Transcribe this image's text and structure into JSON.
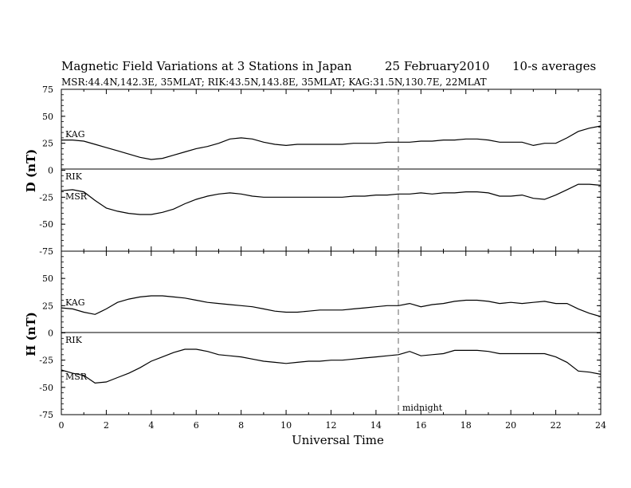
{
  "chart_data": [
    {
      "type": "line",
      "title_parts": {
        "main": "Magnetic Field Variations at 3 Stations in Japan",
        "date": "25 February2010",
        "avg": "10-s averages"
      },
      "subtitle": "MSR:44.4N,142.3E, 35MLAT;  RIK:43.5N,143.8E, 35MLAT;  KAG:31.5N,130.7E, 22MLAT",
      "ylabel": "D (nT)",
      "xlabel": "Universal Time",
      "ylim": [
        -75,
        75
      ],
      "xlim": [
        0,
        24
      ],
      "yticks": [
        "75",
        "50",
        "25",
        "0",
        "-25",
        "-50",
        "-75"
      ],
      "xticks": [
        "0",
        "2",
        "4",
        "6",
        "8",
        "10",
        "12",
        "14",
        "16",
        "18",
        "20",
        "22",
        "24"
      ],
      "series": [
        {
          "name": "KAG",
          "x": [
            0,
            0.5,
            1,
            1.5,
            2,
            2.5,
            3,
            3.5,
            4,
            4.5,
            5,
            5.5,
            6,
            6.5,
            7,
            7.5,
            8,
            8.5,
            9,
            9.5,
            10,
            10.5,
            11,
            11.5,
            12,
            12.5,
            13,
            13.5,
            14,
            14.5,
            15,
            15.5,
            16,
            16.5,
            17,
            17.5,
            18,
            18.5,
            19,
            19.5,
            20,
            20.5,
            21,
            21.5,
            22,
            22.5,
            23,
            23.5,
            24
          ],
          "values": [
            28,
            28,
            27,
            24,
            21,
            18,
            15,
            12,
            10,
            11,
            14,
            17,
            20,
            22,
            25,
            29,
            30,
            29,
            26,
            24,
            23,
            24,
            24,
            24,
            24,
            24,
            25,
            25,
            25,
            26,
            26,
            26,
            27,
            27,
            28,
            28,
            29,
            29,
            28,
            26,
            26,
            26,
            23,
            25,
            25,
            30,
            36,
            39,
            41
          ]
        },
        {
          "name": "RIK",
          "x": [
            0,
            24
          ],
          "values": [
            0,
            0
          ]
        },
        {
          "name": "MSR",
          "x": [
            0,
            0.5,
            1,
            1.5,
            2,
            2.5,
            3,
            3.5,
            4,
            4.5,
            5,
            5.5,
            6,
            6.5,
            7,
            7.5,
            8,
            8.5,
            9,
            9.5,
            10,
            10.5,
            11,
            11.5,
            12,
            12.5,
            13,
            13.5,
            14,
            14.5,
            15,
            15.5,
            16,
            16.5,
            17,
            17.5,
            18,
            18.5,
            19,
            19.5,
            20,
            20.5,
            21,
            21.5,
            22,
            22.5,
            23,
            23.5,
            24
          ],
          "values": [
            -19,
            -18,
            -20,
            -28,
            -35,
            -38,
            -40,
            -41,
            -41,
            -39,
            -36,
            -31,
            -27,
            -24,
            -22,
            -21,
            -22,
            -24,
            -25,
            -25,
            -25,
            -25,
            -25,
            -25,
            -25,
            -25,
            -24,
            -24,
            -23,
            -23,
            -22,
            -22,
            -21,
            -22,
            -21,
            -21,
            -20,
            -20,
            -21,
            -24,
            -24,
            -23,
            -26,
            -27,
            -23,
            -18,
            -13,
            -13,
            -14
          ]
        }
      ],
      "grid": false
    },
    {
      "type": "line",
      "ylabel": "H (nT)",
      "xlabel": "Universal Time",
      "ylim": [
        -75,
        75
      ],
      "xlim": [
        0,
        24
      ],
      "yticks": [
        "50",
        "25",
        "0",
        "-25",
        "-50",
        "-75"
      ],
      "xticks": [
        "0",
        "2",
        "4",
        "6",
        "8",
        "10",
        "12",
        "14",
        "16",
        "18",
        "20",
        "22",
        "24"
      ],
      "annotation": "midnight",
      "midnight_ut": 15,
      "series": [
        {
          "name": "KAG",
          "x": [
            0,
            0.5,
            1,
            1.5,
            2,
            2.5,
            3,
            3.5,
            4,
            4.5,
            5,
            5.5,
            6,
            6.5,
            7,
            7.5,
            8,
            8.5,
            9,
            9.5,
            10,
            10.5,
            11,
            11.5,
            12,
            12.5,
            13,
            13.5,
            14,
            14.5,
            15,
            15.5,
            16,
            16.5,
            17,
            17.5,
            18,
            18.5,
            19,
            19.5,
            20,
            20.5,
            21,
            21.5,
            22,
            22.5,
            23,
            23.5,
            24
          ],
          "values": [
            23,
            22,
            19,
            17,
            22,
            28,
            31,
            33,
            34,
            34,
            33,
            32,
            30,
            28,
            27,
            26,
            25,
            24,
            22,
            20,
            19,
            19,
            20,
            21,
            21,
            21,
            22,
            23,
            24,
            25,
            25,
            27,
            24,
            26,
            27,
            29,
            30,
            30,
            29,
            27,
            28,
            27,
            28,
            29,
            27,
            27,
            22,
            18,
            15
          ]
        },
        {
          "name": "RIK",
          "x": [
            0,
            24
          ],
          "values": [
            0,
            0
          ]
        },
        {
          "name": "MSR",
          "x": [
            0,
            0.5,
            1,
            1.5,
            2,
            2.5,
            3,
            3.5,
            4,
            4.5,
            5,
            5.5,
            6,
            6.5,
            7,
            7.5,
            8,
            8.5,
            9,
            9.5,
            10,
            10.5,
            11,
            11.5,
            12,
            12.5,
            13,
            13.5,
            14,
            14.5,
            15,
            15.5,
            16,
            16.5,
            17,
            17.5,
            18,
            18.5,
            19,
            19.5,
            20,
            20.5,
            21,
            21.5,
            22,
            22.5,
            23,
            23.5,
            24
          ],
          "values": [
            -34,
            -37,
            -39,
            -46,
            -45,
            -41,
            -37,
            -32,
            -26,
            -22,
            -18,
            -15,
            -15,
            -17,
            -20,
            -21,
            -22,
            -24,
            -26,
            -27,
            -28,
            -27,
            -26,
            -26,
            -25,
            -25,
            -24,
            -23,
            -22,
            -21,
            -20,
            -17,
            -21,
            -20,
            -19,
            -16,
            -16,
            -16,
            -17,
            -19,
            -19,
            -19,
            -19,
            -19,
            -22,
            -27,
            -35,
            -36,
            -38
          ]
        }
      ],
      "grid": false
    }
  ]
}
